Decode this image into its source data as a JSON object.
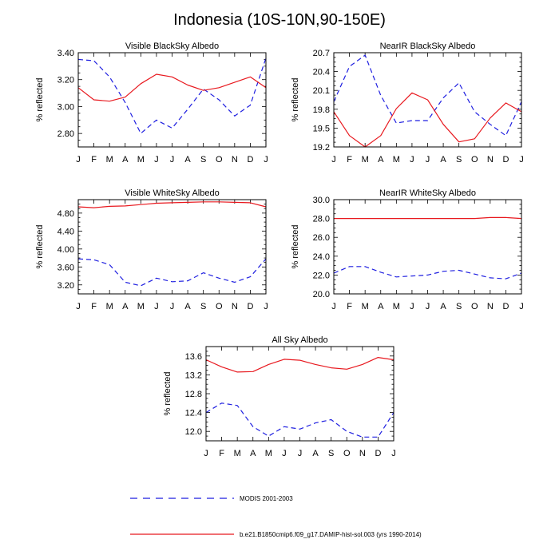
{
  "title": "Indonesia (10S-10N,90-150E)",
  "colors": {
    "modis": "#1f1fe0",
    "model": "#e8191f"
  },
  "legend": {
    "modis_label": "MODIS 2001-2003",
    "model_label": "b.e21.B1850cmip6.f09_g17.DAMIP-hist-sol.003 (yrs 1990-2014)"
  },
  "chart_data": [
    {
      "type": "line",
      "title": "Visible BlackSky Albedo",
      "ylabel": "% reflected",
      "x": [
        "J",
        "F",
        "M",
        "A",
        "M",
        "J",
        "J",
        "A",
        "S",
        "O",
        "N",
        "D",
        "J"
      ],
      "ylim": [
        2.7,
        3.4
      ],
      "yticks": [
        2.8,
        3.0,
        3.2,
        3.4
      ],
      "ytick_labels": [
        "2.80",
        "3.00",
        "3.20",
        "3.40"
      ],
      "series": [
        {
          "key": "modis",
          "values": [
            3.35,
            3.34,
            3.22,
            3.03,
            2.8,
            2.9,
            2.84,
            2.98,
            3.13,
            3.05,
            2.93,
            3.01,
            3.36
          ]
        },
        {
          "key": "model",
          "values": [
            3.14,
            3.05,
            3.04,
            3.07,
            3.17,
            3.24,
            3.22,
            3.16,
            3.12,
            3.14,
            3.18,
            3.22,
            3.14
          ]
        }
      ]
    },
    {
      "type": "line",
      "title": "NearIR BlackSky Albedo",
      "ylabel": "% reflected",
      "x": [
        "J",
        "F",
        "M",
        "A",
        "M",
        "J",
        "J",
        "A",
        "S",
        "O",
        "N",
        "D",
        "J"
      ],
      "ylim": [
        19.2,
        20.7
      ],
      "yticks": [
        19.2,
        19.5,
        19.8,
        20.1,
        20.4,
        20.7
      ],
      "ytick_labels": [
        "19.2",
        "19.5",
        "19.8",
        "20.1",
        "20.4",
        "20.7"
      ],
      "series": [
        {
          "key": "modis",
          "values": [
            19.92,
            20.48,
            20.66,
            20.02,
            19.58,
            19.62,
            19.62,
            19.98,
            20.22,
            19.76,
            19.56,
            19.38,
            19.92
          ]
        },
        {
          "key": "model",
          "values": [
            19.76,
            19.38,
            19.2,
            19.38,
            19.81,
            20.06,
            19.95,
            19.56,
            19.28,
            19.33,
            19.66,
            19.9,
            19.76
          ]
        }
      ]
    },
    {
      "type": "line",
      "title": "Visible WhiteSky Albedo",
      "ylabel": "% reflected",
      "x": [
        "J",
        "F",
        "M",
        "A",
        "M",
        "J",
        "J",
        "A",
        "S",
        "O",
        "N",
        "D",
        "J"
      ],
      "ylim": [
        3.0,
        5.1
      ],
      "yticks": [
        3.2,
        3.6,
        4.0,
        4.4,
        4.8
      ],
      "ytick_labels": [
        "3.20",
        "3.60",
        "4.00",
        "4.40",
        "4.80"
      ],
      "series": [
        {
          "key": "modis",
          "values": [
            3.78,
            3.76,
            3.65,
            3.26,
            3.18,
            3.35,
            3.27,
            3.29,
            3.47,
            3.35,
            3.26,
            3.38,
            3.78
          ]
        },
        {
          "key": "model",
          "values": [
            4.94,
            4.92,
            4.95,
            4.96,
            4.99,
            5.02,
            5.03,
            5.04,
            5.05,
            5.05,
            5.04,
            5.03,
            4.94
          ]
        }
      ]
    },
    {
      "type": "line",
      "title": "NearIR WhiteSky Albedo",
      "ylabel": "% reflected",
      "x": [
        "J",
        "F",
        "M",
        "A",
        "M",
        "J",
        "J",
        "A",
        "S",
        "O",
        "N",
        "D",
        "J"
      ],
      "ylim": [
        20.0,
        30.0
      ],
      "yticks": [
        20.0,
        22.0,
        24.0,
        26.0,
        28.0,
        30.0
      ],
      "ytick_labels": [
        "20.0",
        "22.0",
        "24.0",
        "26.0",
        "28.0",
        "30.0"
      ],
      "series": [
        {
          "key": "modis",
          "values": [
            22.2,
            22.9,
            22.9,
            22.3,
            21.8,
            21.9,
            22.0,
            22.4,
            22.5,
            22.1,
            21.7,
            21.6,
            22.2
          ]
        },
        {
          "key": "model",
          "values": [
            28.0,
            28.0,
            28.0,
            28.0,
            28.0,
            28.0,
            28.0,
            28.0,
            28.0,
            28.0,
            28.1,
            28.1,
            28.0
          ]
        }
      ]
    },
    {
      "type": "line",
      "title": "All Sky Albedo",
      "ylabel": "% reflected",
      "x": [
        "J",
        "F",
        "M",
        "A",
        "M",
        "J",
        "J",
        "A",
        "S",
        "O",
        "N",
        "D",
        "J"
      ],
      "ylim": [
        11.8,
        13.8
      ],
      "yticks": [
        12.0,
        12.4,
        12.8,
        13.2,
        13.6
      ],
      "ytick_labels": [
        "12.0",
        "12.4",
        "12.8",
        "13.2",
        "13.6"
      ],
      "series": [
        {
          "key": "modis",
          "values": [
            12.4,
            12.6,
            12.55,
            12.1,
            11.9,
            12.1,
            12.05,
            12.18,
            12.25,
            12.0,
            11.88,
            11.88,
            12.4
          ]
        },
        {
          "key": "model",
          "values": [
            13.52,
            13.37,
            13.26,
            13.27,
            13.42,
            13.53,
            13.51,
            13.42,
            13.35,
            13.32,
            13.42,
            13.57,
            13.52
          ]
        }
      ]
    }
  ]
}
